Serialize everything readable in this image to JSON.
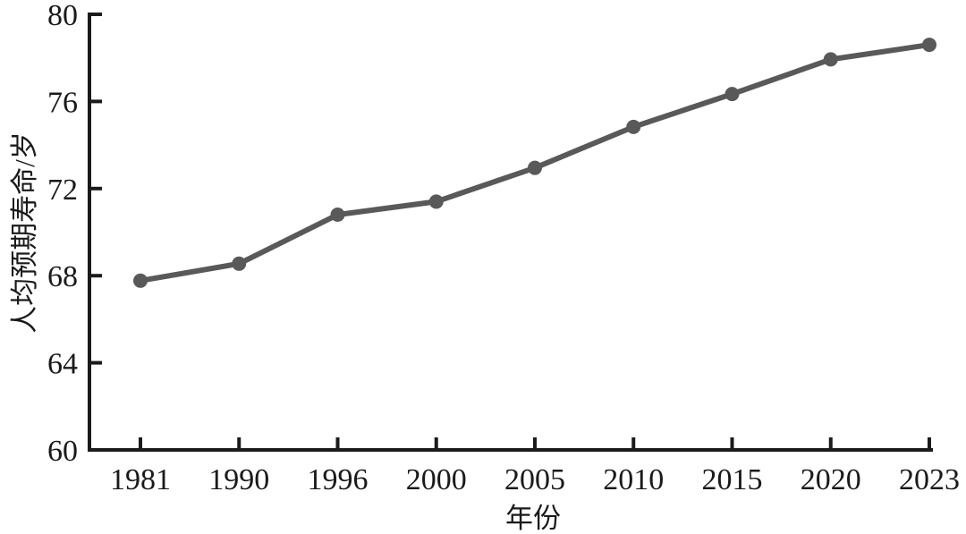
{
  "figure": {
    "background": "#ffffff",
    "text_color": "#1a1a1a"
  },
  "chart_data": {
    "type": "line",
    "title": "",
    "categories": [
      "1981",
      "1990",
      "1996",
      "2000",
      "2005",
      "2010",
      "2015",
      "2020",
      "2023"
    ],
    "series": [
      {
        "name": "人均预期寿命",
        "values": [
          67.77,
          68.55,
          70.8,
          71.4,
          72.95,
          74.83,
          76.34,
          77.93,
          78.6
        ]
      }
    ],
    "xlabel": "年份",
    "ylabel": "人均预期寿命/岁",
    "ylim": [
      60,
      80
    ],
    "y_ticks": [
      60,
      64,
      68,
      72,
      76,
      80
    ],
    "grid": false,
    "legend": "none",
    "x_axis_type": "categorical-equal-spacing",
    "line_color": "#595959",
    "marker_color": "#595959",
    "marker_shape": "circle",
    "axis_color": "#1b1b1b"
  }
}
